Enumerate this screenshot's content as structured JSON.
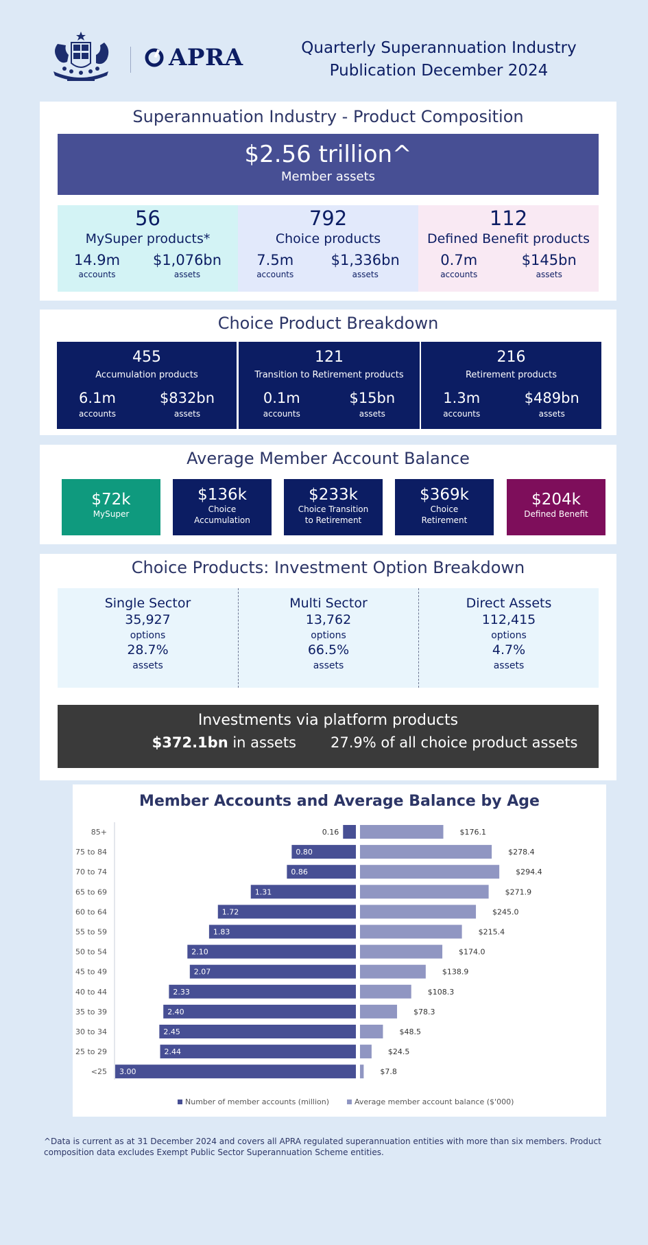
{
  "header": {
    "title_line1": "Quarterly Superannuation Industry",
    "title_line2": "Publication December 2024",
    "logo_text": "APRA"
  },
  "composition": {
    "title": "Superannuation Industry - Product Composition",
    "total_assets": "$2.56 trillion^",
    "total_label": "Member assets",
    "products": [
      {
        "count": "56",
        "name": "MySuper products*",
        "accounts": "14.9m",
        "accounts_label": "accounts",
        "assets": "$1,076bn",
        "assets_label": "assets",
        "color": "#d3f3f5"
      },
      {
        "count": "792",
        "name": "Choice products",
        "accounts": "7.5m",
        "accounts_label": "accounts",
        "assets": "$1,336bn",
        "assets_label": "assets",
        "color": "#e2e9fb"
      },
      {
        "count": "112",
        "name": "Defined Benefit products",
        "accounts": "0.7m",
        "accounts_label": "accounts",
        "assets": "$145bn",
        "assets_label": "assets",
        "color": "#f9e9f3"
      }
    ]
  },
  "choice_breakdown": {
    "title": "Choice Product Breakdown",
    "items": [
      {
        "count": "455",
        "name": "Accumulation products",
        "accounts": "6.1m",
        "accounts_label": "accounts",
        "assets": "$832bn",
        "assets_label": "assets"
      },
      {
        "count": "121",
        "name": "Transition to Retirement products",
        "accounts": "0.1m",
        "accounts_label": "accounts",
        "assets": "$15bn",
        "assets_label": "assets"
      },
      {
        "count": "216",
        "name": "Retirement products",
        "accounts": "1.3m",
        "accounts_label": "accounts",
        "assets": "$489bn",
        "assets_label": "assets"
      }
    ]
  },
  "avg_balance": {
    "title": "Average Member Account Balance",
    "items": [
      {
        "value": "$72k",
        "line1": "MySuper",
        "line2": "",
        "color": "#0f9a7e"
      },
      {
        "value": "$136k",
        "line1": "Choice",
        "line2": "Accumulation",
        "color": "#0c1d63"
      },
      {
        "value": "$233k",
        "line1": "Choice Transition",
        "line2": "to Retirement",
        "color": "#0c1d63"
      },
      {
        "value": "$369k",
        "line1": "Choice",
        "line2": "Retirement",
        "color": "#0c1d63"
      },
      {
        "value": "$204k",
        "line1": "Defined Benefit",
        "line2": "",
        "color": "#7e0e5b"
      }
    ]
  },
  "investment": {
    "title": "Choice Products: Investment Option Breakdown",
    "items": [
      {
        "name": "Single Sector",
        "options": "35,927",
        "options_label": "options",
        "assets": "28.7%",
        "assets_label": "assets"
      },
      {
        "name": "Multi Sector",
        "options": "13,762",
        "options_label": "options",
        "assets": "66.5%",
        "assets_label": "assets"
      },
      {
        "name": "Direct Assets",
        "options": "112,415",
        "options_label": "options",
        "assets": "4.7%",
        "assets_label": "assets"
      }
    ],
    "platform_title": "Investments via platform products",
    "platform_assets": "$372.1bn",
    "platform_assets_suffix": " in assets",
    "platform_share": "27.9%",
    "platform_share_suffix": " of all choice product assets"
  },
  "chart_data": {
    "type": "bar",
    "title": "Member Accounts and Average Balance by Age",
    "categories": [
      "85+",
      "75 to 84",
      "70 to 74",
      "65 to 69",
      "60 to 64",
      "55 to 59",
      "50 to 54",
      "45 to 49",
      "40 to 44",
      "35 to 39",
      "30 to 34",
      "25 to 29",
      "<25"
    ],
    "series": [
      {
        "name": "Number of member accounts (million)",
        "values": [
          0.16,
          0.8,
          0.86,
          1.31,
          1.72,
          1.83,
          2.1,
          2.07,
          2.33,
          2.4,
          2.45,
          2.44,
          3.0
        ],
        "labels": [
          "0.16",
          "0.80",
          "0.86",
          "1.31",
          "1.72",
          "1.83",
          "2.10",
          "2.07",
          "2.33",
          "2.40",
          "2.45",
          "2.44",
          "3.00"
        ],
        "color": "#474f94"
      },
      {
        "name": "Average member account balance ($'000)",
        "values": [
          176.1,
          278.4,
          294.4,
          271.9,
          245.0,
          215.4,
          174.0,
          138.9,
          108.3,
          78.3,
          48.5,
          24.5,
          7.8
        ],
        "labels": [
          "$176.1",
          "$278.4",
          "$294.4",
          "$271.9",
          "$245.0",
          "$215.4",
          "$174.0",
          "$138.9",
          "$108.3",
          "$78.3",
          "$48.5",
          "$24.5",
          "$7.8"
        ],
        "color": "#9096c2"
      }
    ],
    "xlim_left": [
      0,
      3.0
    ],
    "xlim_right": [
      0,
      300
    ],
    "legend_position": "bottom"
  },
  "footnote": "^Data is current as at 31 December 2024 and covers all APRA regulated superannuation entities with more than six members.  Product composition data excludes Exempt Public Sector Superannuation Scheme entities."
}
